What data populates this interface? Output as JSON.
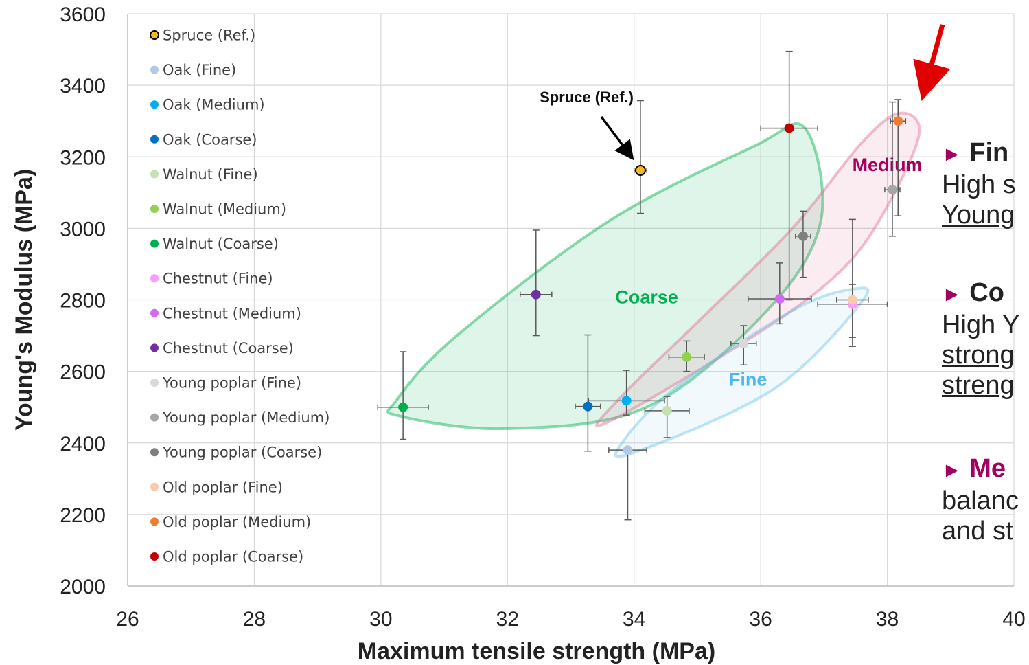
{
  "chart_data": {
    "type": "scatter",
    "xlabel": "Maximum tensile strength (MPa)",
    "ylabel": "Young's Modulus (MPa)",
    "xlim": [
      26,
      40
    ],
    "ylim": [
      2000,
      3600
    ],
    "xticks": [
      26,
      28,
      30,
      32,
      34,
      36,
      38,
      40
    ],
    "yticks": [
      2000,
      2200,
      2400,
      2600,
      2800,
      3000,
      3200,
      3400,
      3600
    ],
    "grid": true,
    "legend_position": "top-left",
    "series": [
      {
        "name": "Spruce  (Ref.)",
        "color": "#f5b921",
        "outline": "#000000",
        "x": 34.1,
        "y": 3162,
        "xerr": 0.1,
        "yerr": [
          120,
          195
        ]
      },
      {
        "name": "Oak (Fine)",
        "color": "#b4c7e7",
        "x": 33.9,
        "y": 2380,
        "xerr": 0.3,
        "yerr": [
          195,
          0
        ]
      },
      {
        "name": "Oak (Medium)",
        "color": "#00b0f0",
        "x": 33.88,
        "y": 2518,
        "xerr": 0.6,
        "yerr": [
          40,
          85
        ]
      },
      {
        "name": "Oak (Coarse)",
        "color": "#0070c0",
        "x": 33.27,
        "y": 2502,
        "xerr": 0.2,
        "yerr": [
          125,
          200
        ]
      },
      {
        "name": "Walnut (Fine)",
        "color": "#c5e0b4",
        "x": 34.52,
        "y": 2490,
        "xerr": 0.35,
        "yerr": [
          75,
          40
        ]
      },
      {
        "name": "Walnut (Medium)",
        "color": "#92d050",
        "x": 34.83,
        "y": 2640,
        "xerr": 0.28,
        "yerr": [
          40,
          45
        ]
      },
      {
        "name": "Walnut (Coarse)",
        "color": "#00b050",
        "x": 30.35,
        "y": 2500,
        "xerr": 0.4,
        "yerr": [
          90,
          155
        ]
      },
      {
        "name": "Chestnut (Fine)",
        "color": "#ff99ff",
        "x": 37.45,
        "y": 2788,
        "xerr": 0.55,
        "yerr": [
          118,
          55
        ]
      },
      {
        "name": "Chestnut (Medium)",
        "color": "#d36bf0",
        "x": 36.3,
        "y": 2803,
        "xerr": 0.5,
        "yerr": [
          70,
          100
        ]
      },
      {
        "name": "Chestnut (Coarse)",
        "color": "#7030a0",
        "x": 32.45,
        "y": 2815,
        "xerr": 0.25,
        "yerr": [
          115,
          180
        ]
      },
      {
        "name": "Young poplar (Fine)",
        "color": "#d9d9d9",
        "x": 35.73,
        "y": 2678,
        "xerr": 0.2,
        "yerr": [
          60,
          50
        ]
      },
      {
        "name": "Young poplar (Medium)",
        "color": "#a6a6a6",
        "x": 38.08,
        "y": 3108,
        "xerr": 0.12,
        "yerr": [
          130,
          245
        ]
      },
      {
        "name": "Young poplar (Coarse)",
        "color": "#7f7f7f",
        "x": 36.67,
        "y": 2978,
        "xerr": 0.12,
        "yerr": [
          115,
          70
        ]
      },
      {
        "name": "Old poplar (Fine)",
        "color": "#f8cbad",
        "x": 37.45,
        "y": 2800,
        "xerr": 0.25,
        "yerr": [
          105,
          225
        ]
      },
      {
        "name": "Old poplar (Medium)",
        "color": "#ed7d31",
        "x": 38.17,
        "y": 3300,
        "xerr": 0.12,
        "yerr": [
          265,
          60
        ]
      },
      {
        "name": "Old poplar (Coarse)",
        "color": "#c00000",
        "x": 36.45,
        "y": 3280,
        "xerr": 0.45,
        "yerr": [
          480,
          215
        ]
      }
    ],
    "groups": [
      {
        "label": "Coarse",
        "color": "#00b050",
        "fill": "#00b050",
        "path": [
          [
            30.3,
            2475
          ],
          [
            32,
            2440
          ],
          [
            34.2,
            2500
          ],
          [
            36.1,
            2770
          ],
          [
            36.95,
            3020
          ],
          [
            36.7,
            3280
          ],
          [
            35.9,
            3230
          ],
          [
            33.6,
            3020
          ],
          [
            31.2,
            2700
          ],
          [
            30.25,
            2520
          ]
        ],
        "label_at": [
          34.2,
          2790
        ]
      },
      {
        "label": "Medium",
        "color": "#e07090",
        "fill": "#e06090",
        "path": [
          [
            33.55,
            2455
          ],
          [
            35.9,
            2700
          ],
          [
            37.2,
            2870
          ],
          [
            37.9,
            3030
          ],
          [
            38.5,
            3260
          ],
          [
            38.2,
            3322
          ],
          [
            37.6,
            3240
          ],
          [
            36.5,
            3000
          ],
          [
            34.9,
            2720
          ],
          [
            33.8,
            2530
          ]
        ],
        "label_at": [
          38.0,
          3160
        ]
      },
      {
        "label": "Fine",
        "color": "#6ec6ec",
        "fill": "#8fd0f0",
        "path": [
          [
            33.95,
            2370
          ],
          [
            36.2,
            2550
          ],
          [
            37.6,
            2795
          ],
          [
            37.45,
            2830
          ],
          [
            36.5,
            2770
          ],
          [
            34.7,
            2560
          ],
          [
            33.85,
            2410
          ]
        ],
        "label_at": [
          35.8,
          2560
        ]
      }
    ],
    "annotations": [
      {
        "text": "Spruce (Ref.)",
        "x": 33.25,
        "y": 3352
      }
    ]
  },
  "side_notes": [
    {
      "marker": "►",
      "head": "Fin",
      "lines": [
        "High s",
        "Young"
      ],
      "underline": [
        false,
        true
      ]
    },
    {
      "marker": "►",
      "head": "Co",
      "lines": [
        "High Y",
        "strong",
        "streng"
      ],
      "underline": [
        false,
        true,
        true
      ]
    },
    {
      "marker": "►",
      "head": "Me",
      "lines": [
        "balanc",
        "and st"
      ],
      "underline": [
        false,
        false
      ]
    }
  ]
}
